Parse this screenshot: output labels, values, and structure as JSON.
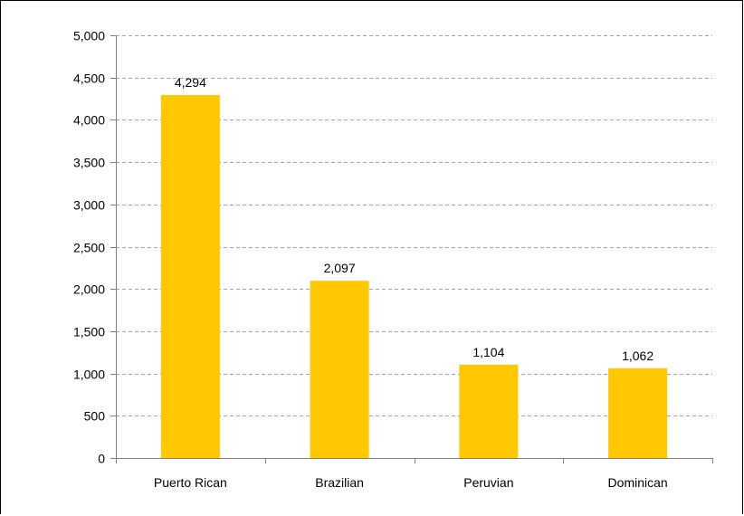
{
  "chart_data": {
    "type": "bar",
    "categories": [
      "Puerto Rican",
      "Brazilian",
      "Peruvian",
      "Dominican"
    ],
    "values": [
      4294,
      2097,
      1104,
      1062
    ],
    "data_labels": [
      "4,294",
      "2,097",
      "1,104",
      "1,062"
    ],
    "y_tick_values": [
      0,
      500,
      1000,
      1500,
      2000,
      2500,
      3000,
      3500,
      4000,
      4500,
      5000
    ],
    "y_tick_labels": [
      "0",
      "500",
      "1,000",
      "1,500",
      "2,000",
      "2,500",
      "3,000",
      "3,500",
      "4,000",
      "4,500",
      "5,000"
    ],
    "ylim": [
      0,
      5000
    ],
    "title": "",
    "xlabel": "",
    "ylabel": "",
    "grid": true,
    "legend": false,
    "bar_color": "#FFC800",
    "grid_color": "#A6A6A6",
    "axis_color": "#808080"
  }
}
